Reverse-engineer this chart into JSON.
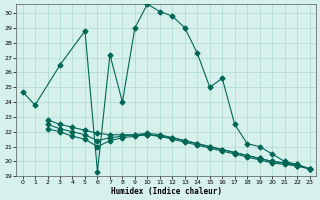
{
  "xlabel": "Humidex (Indice chaleur)",
  "bg_color": "#d6f0ec",
  "grid_color": "#b0d8d0",
  "line_color": "#006655",
  "xlim": [
    -0.5,
    23.5
  ],
  "ylim": [
    19.0,
    30.6
  ],
  "yticks": [
    19,
    20,
    21,
    22,
    23,
    24,
    25,
    26,
    27,
    28,
    29,
    30
  ],
  "xticks": [
    0,
    1,
    2,
    3,
    4,
    5,
    6,
    7,
    8,
    9,
    10,
    11,
    12,
    13,
    14,
    15,
    16,
    17,
    18,
    19,
    20,
    21,
    22,
    23
  ],
  "main_x": [
    0,
    1,
    3,
    5,
    6,
    7,
    8,
    9,
    10,
    11,
    12,
    13,
    14,
    15,
    16,
    17,
    18,
    19,
    20,
    21,
    22,
    23
  ],
  "main_y": [
    24.7,
    23.8,
    26.5,
    28.8,
    19.3,
    27.2,
    24.0,
    29.0,
    30.6,
    30.1,
    29.8,
    29.0,
    27.3,
    25.0,
    25.6,
    22.5,
    21.2,
    21.0,
    20.5,
    20.0,
    19.8,
    19.5
  ],
  "line2_x": [
    2,
    3,
    4,
    5,
    6,
    7,
    8,
    9,
    10,
    11,
    12,
    13,
    14,
    15,
    16,
    17,
    18,
    19,
    20,
    21,
    22,
    23
  ],
  "line2_y": [
    22.8,
    22.5,
    22.3,
    22.1,
    21.9,
    21.8,
    21.8,
    21.8,
    21.8,
    21.7,
    21.6,
    21.4,
    21.2,
    21.0,
    20.8,
    20.6,
    20.4,
    20.2,
    20.0,
    19.9,
    19.8,
    19.5
  ],
  "line3_x": [
    2,
    3,
    4,
    5,
    6,
    7,
    8,
    9,
    10,
    11,
    12,
    13,
    14,
    15,
    16,
    17,
    18,
    19,
    20,
    21,
    22,
    23
  ],
  "line3_y": [
    22.2,
    22.0,
    21.7,
    21.5,
    21.0,
    21.4,
    21.6,
    21.7,
    21.8,
    21.7,
    21.5,
    21.3,
    21.1,
    20.9,
    20.7,
    20.5,
    20.3,
    20.1,
    19.9,
    19.8,
    19.7,
    19.5
  ],
  "line4_x": [
    2,
    3,
    4,
    5,
    6,
    7,
    8,
    9,
    10,
    11,
    12,
    13,
    14,
    15,
    16,
    17,
    18,
    19,
    20,
    21,
    22,
    23
  ],
  "line4_y": [
    22.5,
    22.2,
    22.0,
    21.8,
    21.4,
    21.6,
    21.7,
    21.8,
    21.9,
    21.8,
    21.6,
    21.4,
    21.2,
    21.0,
    20.8,
    20.6,
    20.4,
    20.2,
    20.0,
    19.9,
    19.7,
    19.5
  ]
}
